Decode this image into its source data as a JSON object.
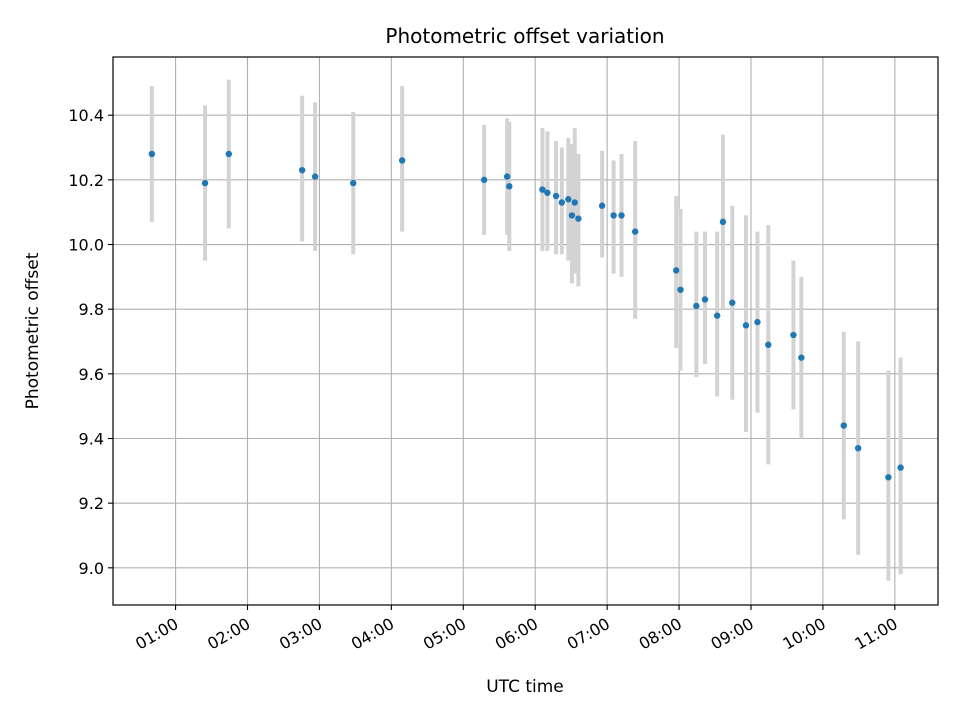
{
  "chart_data": {
    "type": "scatter",
    "title": "Photometric offset variation",
    "xlabel": "UTC time",
    "ylabel": "Photometric offset",
    "x_unit": "hour",
    "xlim": [
      0.13,
      11.6
    ],
    "ylim": [
      8.885,
      10.58
    ],
    "grid": true,
    "x_ticks": [
      {
        "value": 1,
        "label": "01:00"
      },
      {
        "value": 2,
        "label": "02:00"
      },
      {
        "value": 3,
        "label": "03:00"
      },
      {
        "value": 4,
        "label": "04:00"
      },
      {
        "value": 5,
        "label": "05:00"
      },
      {
        "value": 6,
        "label": "06:00"
      },
      {
        "value": 7,
        "label": "07:00"
      },
      {
        "value": 8,
        "label": "08:00"
      },
      {
        "value": 9,
        "label": "09:00"
      },
      {
        "value": 10,
        "label": "10:00"
      },
      {
        "value": 11,
        "label": "11:00"
      }
    ],
    "y_ticks": [
      {
        "value": 9.0,
        "label": "9.0"
      },
      {
        "value": 9.2,
        "label": "9.2"
      },
      {
        "value": 9.4,
        "label": "9.4"
      },
      {
        "value": 9.6,
        "label": "9.6"
      },
      {
        "value": 9.8,
        "label": "9.8"
      },
      {
        "value": 10.0,
        "label": "10.0"
      },
      {
        "value": 10.2,
        "label": "10.2"
      },
      {
        "value": 10.4,
        "label": "10.4"
      }
    ],
    "colors": {
      "point": "#1f77b4",
      "errorbar": "#d3d3d3",
      "grid": "#b0b0b0"
    },
    "points": [
      {
        "x": 0.67,
        "y": 10.28,
        "lo": 10.07,
        "hi": 10.49
      },
      {
        "x": 1.41,
        "y": 10.19,
        "lo": 9.95,
        "hi": 10.43
      },
      {
        "x": 1.74,
        "y": 10.28,
        "lo": 10.05,
        "hi": 10.51
      },
      {
        "x": 2.76,
        "y": 10.23,
        "lo": 10.01,
        "hi": 10.46
      },
      {
        "x": 2.94,
        "y": 10.21,
        "lo": 9.98,
        "hi": 10.44
      },
      {
        "x": 3.47,
        "y": 10.19,
        "lo": 9.97,
        "hi": 10.41
      },
      {
        "x": 4.15,
        "y": 10.26,
        "lo": 10.04,
        "hi": 10.49
      },
      {
        "x": 5.29,
        "y": 10.2,
        "lo": 10.03,
        "hi": 10.37
      },
      {
        "x": 5.61,
        "y": 10.21,
        "lo": 10.03,
        "hi": 10.39
      },
      {
        "x": 5.64,
        "y": 10.18,
        "lo": 9.98,
        "hi": 10.38
      },
      {
        "x": 6.1,
        "y": 10.17,
        "lo": 9.98,
        "hi": 10.36
      },
      {
        "x": 6.17,
        "y": 10.16,
        "lo": 9.98,
        "hi": 10.35
      },
      {
        "x": 6.29,
        "y": 10.15,
        "lo": 9.97,
        "hi": 10.32
      },
      {
        "x": 6.37,
        "y": 10.13,
        "lo": 9.97,
        "hi": 10.3
      },
      {
        "x": 6.46,
        "y": 10.14,
        "lo": 9.95,
        "hi": 10.33
      },
      {
        "x": 6.51,
        "y": 10.09,
        "lo": 9.88,
        "hi": 10.31
      },
      {
        "x": 6.55,
        "y": 10.13,
        "lo": 9.91,
        "hi": 10.36
      },
      {
        "x": 6.6,
        "y": 10.08,
        "lo": 9.87,
        "hi": 10.28
      },
      {
        "x": 6.93,
        "y": 10.12,
        "lo": 9.96,
        "hi": 10.29
      },
      {
        "x": 7.09,
        "y": 10.09,
        "lo": 9.91,
        "hi": 10.26
      },
      {
        "x": 7.2,
        "y": 10.09,
        "lo": 9.9,
        "hi": 10.28
      },
      {
        "x": 7.39,
        "y": 10.04,
        "lo": 9.77,
        "hi": 10.32
      },
      {
        "x": 7.96,
        "y": 9.92,
        "lo": 9.68,
        "hi": 10.15
      },
      {
        "x": 8.02,
        "y": 9.86,
        "lo": 9.61,
        "hi": 10.11
      },
      {
        "x": 8.24,
        "y": 9.81,
        "lo": 9.59,
        "hi": 10.04
      },
      {
        "x": 8.36,
        "y": 9.83,
        "lo": 9.63,
        "hi": 10.04
      },
      {
        "x": 8.53,
        "y": 9.78,
        "lo": 9.53,
        "hi": 10.04
      },
      {
        "x": 8.61,
        "y": 10.07,
        "lo": 9.8,
        "hi": 10.34
      },
      {
        "x": 8.74,
        "y": 9.82,
        "lo": 9.52,
        "hi": 10.12
      },
      {
        "x": 8.93,
        "y": 9.75,
        "lo": 9.42,
        "hi": 10.09
      },
      {
        "x": 9.09,
        "y": 9.76,
        "lo": 9.48,
        "hi": 10.04
      },
      {
        "x": 9.24,
        "y": 9.69,
        "lo": 9.32,
        "hi": 10.06
      },
      {
        "x": 9.59,
        "y": 9.72,
        "lo": 9.49,
        "hi": 9.95
      },
      {
        "x": 9.7,
        "y": 9.65,
        "lo": 9.4,
        "hi": 9.9
      },
      {
        "x": 10.29,
        "y": 9.44,
        "lo": 9.15,
        "hi": 9.73
      },
      {
        "x": 10.49,
        "y": 9.37,
        "lo": 9.04,
        "hi": 9.7
      },
      {
        "x": 10.91,
        "y": 9.28,
        "lo": 8.96,
        "hi": 9.61
      },
      {
        "x": 11.08,
        "y": 9.31,
        "lo": 8.98,
        "hi": 9.65
      }
    ]
  }
}
